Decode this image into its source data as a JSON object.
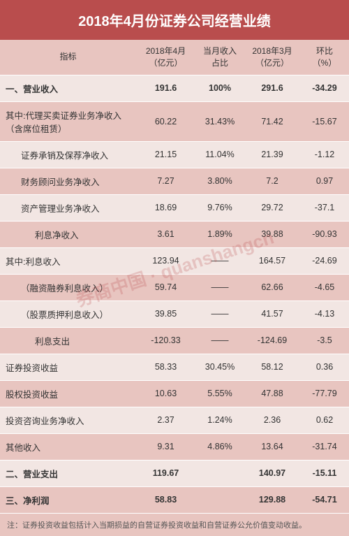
{
  "title": "2018年4月份证券公司经营业绩",
  "headers": {
    "indicator": "指标",
    "currentMonth": "2018年4月\n（亿元）",
    "sharePct": "当月收入\n占比",
    "prevMonth": "2018年3月\n（亿元）",
    "mom": "环比\n（%）"
  },
  "rows": [
    {
      "label": "一、营业收入",
      "v": "191.6",
      "p": "100%",
      "pv": "291.6",
      "m": "-34.29",
      "bold": true,
      "indent": 0,
      "stripe": "odd"
    },
    {
      "label": "其中:代理买卖证券业务净收入（含席位租赁）",
      "v": "60.22",
      "p": "31.43%",
      "pv": "71.42",
      "m": "-15.67",
      "bold": false,
      "indent": 0,
      "stripe": "even"
    },
    {
      "label": "证券承销及保荐净收入",
      "v": "21.15",
      "p": "11.04%",
      "pv": "21.39",
      "m": "-1.12",
      "bold": false,
      "indent": 1,
      "stripe": "odd"
    },
    {
      "label": "财务顾问业务净收入",
      "v": "7.27",
      "p": "3.80%",
      "pv": "7.2",
      "m": "0.97",
      "bold": false,
      "indent": 1,
      "stripe": "even"
    },
    {
      "label": "资产管理业务净收入",
      "v": "18.69",
      "p": "9.76%",
      "pv": "29.72",
      "m": "-37.1",
      "bold": false,
      "indent": 1,
      "stripe": "odd"
    },
    {
      "label": "利息净收入",
      "v": "3.61",
      "p": "1.89%",
      "pv": "39.88",
      "m": "-90.93",
      "bold": false,
      "indent": 2,
      "stripe": "even"
    },
    {
      "label": "其中:利息收入",
      "v": "123.94",
      "p": "——",
      "pv": "164.57",
      "m": "-24.69",
      "bold": false,
      "indent": 0,
      "stripe": "odd"
    },
    {
      "label": "（融资融券利息收入）",
      "v": "59.74",
      "p": "——",
      "pv": "62.66",
      "m": "-4.65",
      "bold": false,
      "indent": 1,
      "stripe": "even"
    },
    {
      "label": "（股票质押利息收入）",
      "v": "39.85",
      "p": "——",
      "pv": "41.57",
      "m": "-4.13",
      "bold": false,
      "indent": 1,
      "stripe": "odd"
    },
    {
      "label": "利息支出",
      "v": "-120.33",
      "p": "——",
      "pv": "-124.69",
      "m": "-3.5",
      "bold": false,
      "indent": 2,
      "stripe": "even"
    },
    {
      "label": "证券投资收益",
      "v": "58.33",
      "p": "30.45%",
      "pv": "58.12",
      "m": "0.36",
      "bold": false,
      "indent": 0,
      "stripe": "odd"
    },
    {
      "label": "股权投资收益",
      "v": "10.63",
      "p": "5.55%",
      "pv": "47.88",
      "m": "-77.79",
      "bold": false,
      "indent": 0,
      "stripe": "even"
    },
    {
      "label": "投资咨询业务净收入",
      "v": "2.37",
      "p": "1.24%",
      "pv": "2.36",
      "m": "0.62",
      "bold": false,
      "indent": 0,
      "stripe": "odd"
    },
    {
      "label": "其他收入",
      "v": "9.31",
      "p": "4.86%",
      "pv": "13.64",
      "m": "-31.74",
      "bold": false,
      "indent": 0,
      "stripe": "even"
    },
    {
      "label": "二、营业支出",
      "v": "119.67",
      "p": "",
      "pv": "140.97",
      "m": "-15.11",
      "bold": true,
      "indent": 0,
      "stripe": "odd"
    },
    {
      "label": "三、净利润",
      "v": "58.83",
      "p": "",
      "pv": "129.88",
      "m": "-54.71",
      "bold": true,
      "indent": 0,
      "stripe": "even"
    }
  ],
  "footnote": "注：证券投资收益包括计入当期损益的自营证券投资收益和自营证券公允价值变动收益。",
  "watermark": "券商中国 · quanshangcn",
  "colors": {
    "titleBg": "#b94d4d",
    "headerBg": "#e8c5c0",
    "oddBg": "#f2e6e3",
    "evenBg": "#e8c5c0"
  }
}
